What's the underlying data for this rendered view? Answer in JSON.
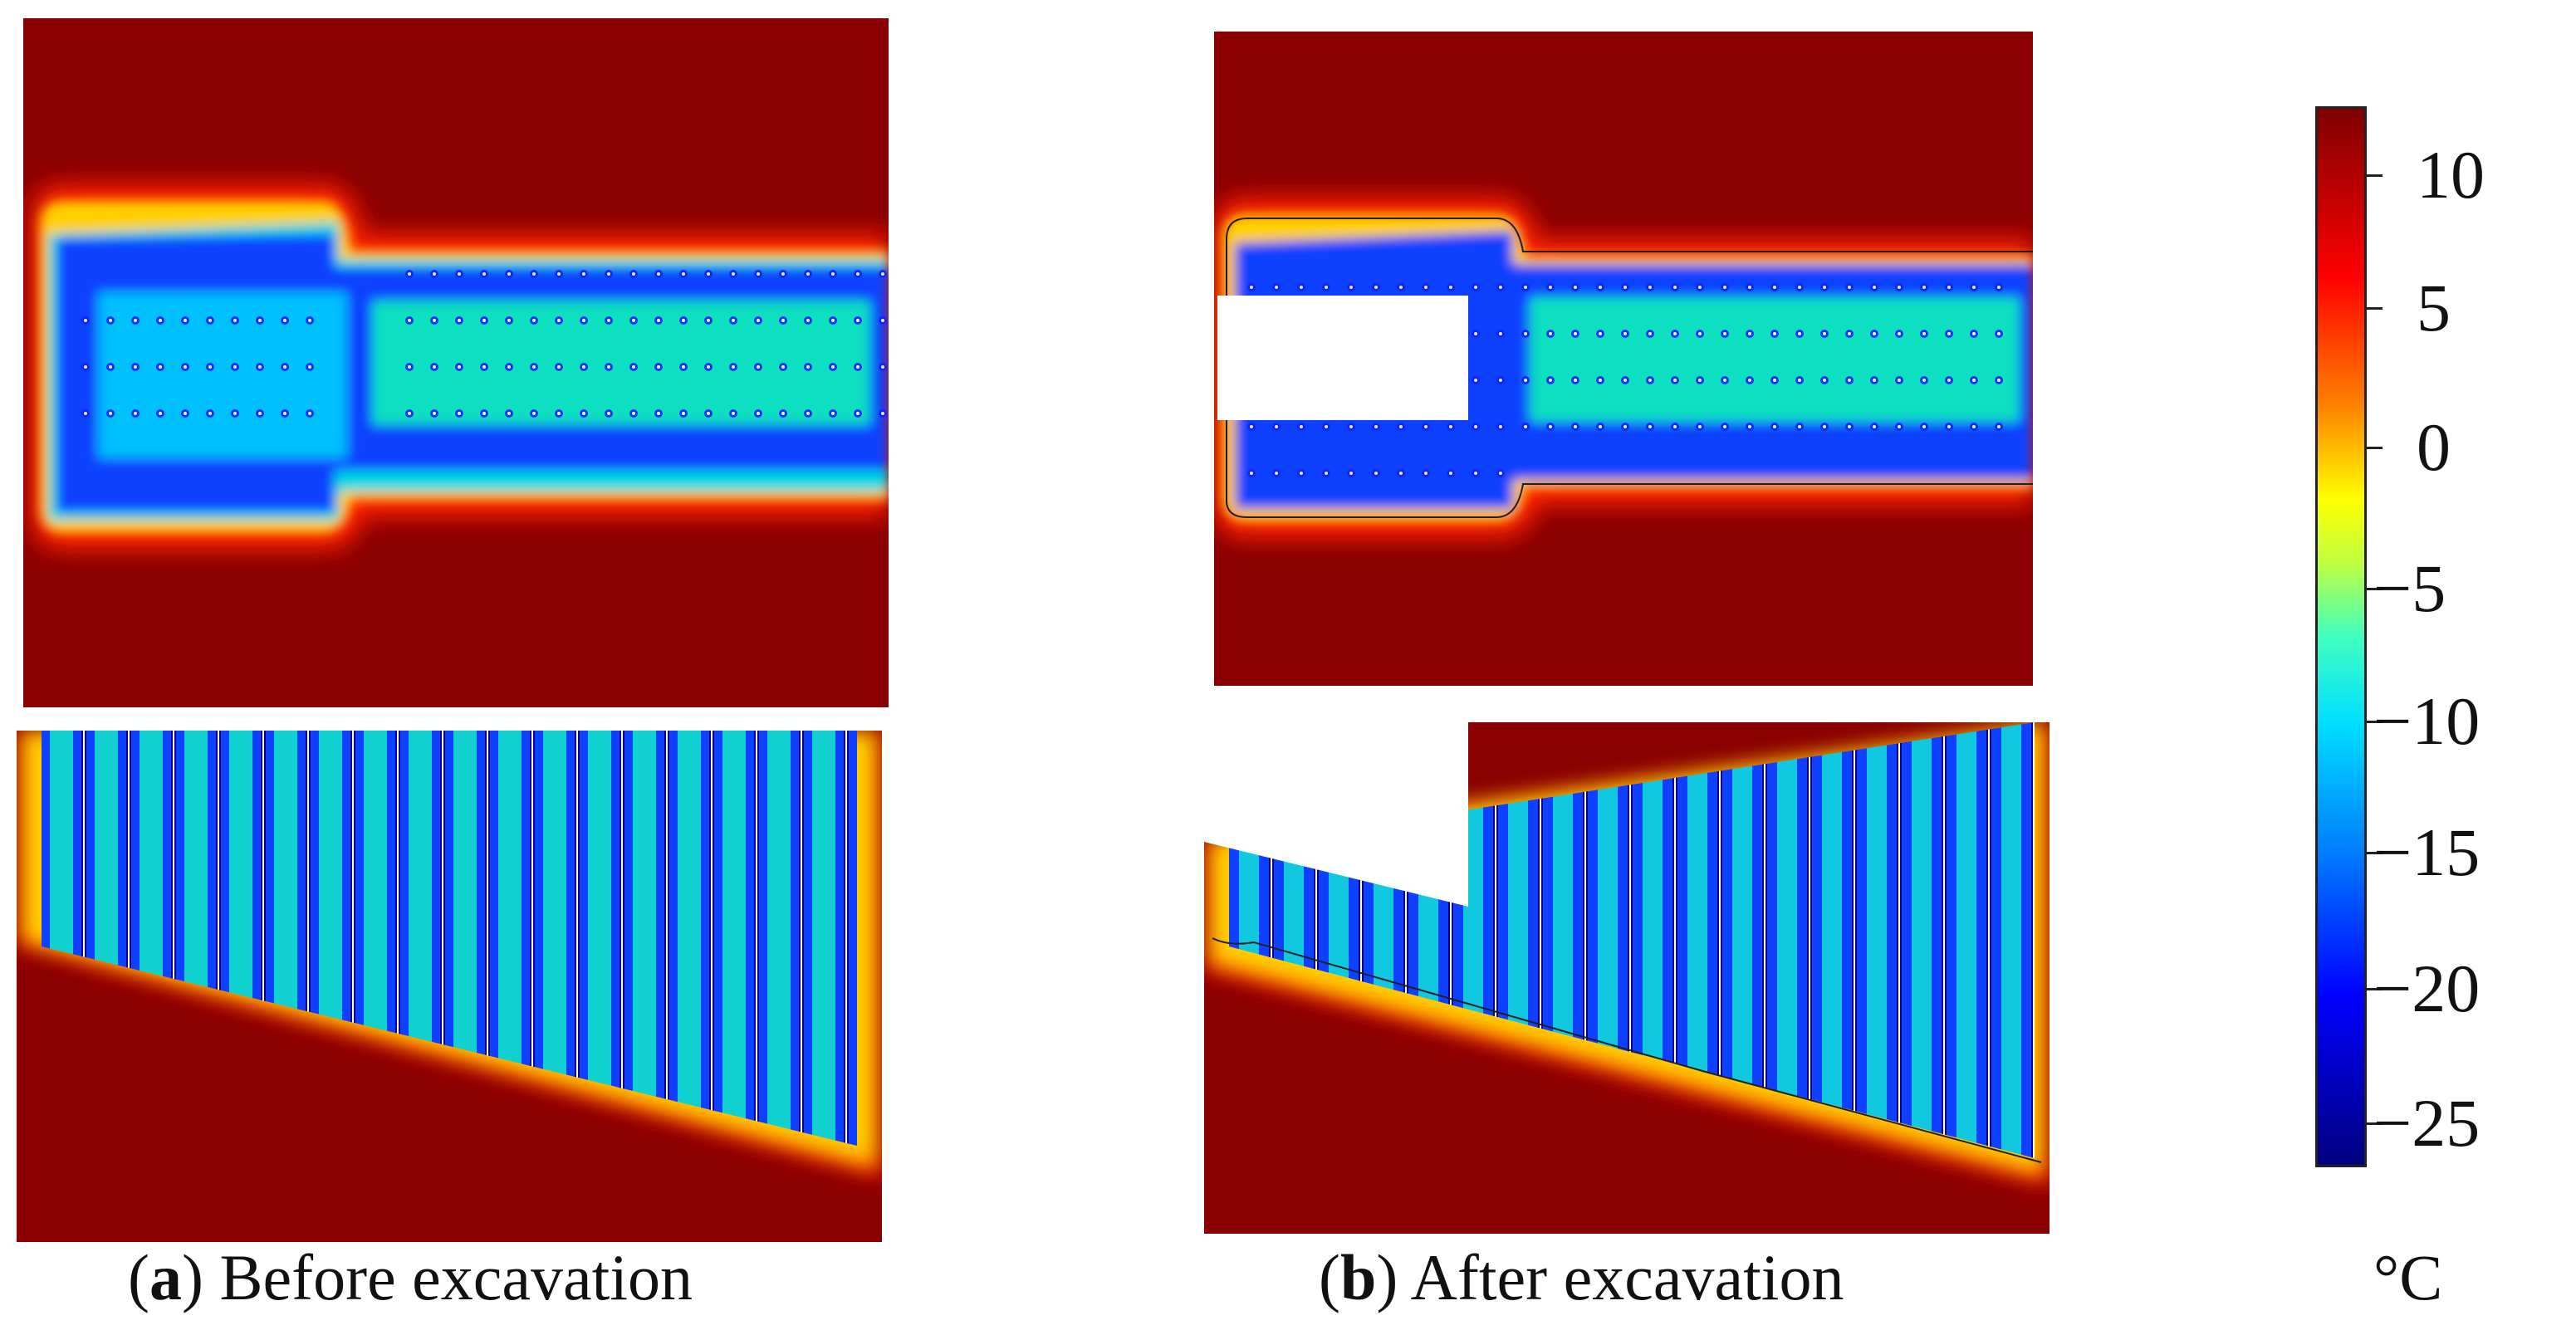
{
  "captions": {
    "a_letter": "a",
    "a_text": " Before excavation",
    "b_letter": "b",
    "b_text": " After excavation"
  },
  "colorbar": {
    "unit": "°C",
    "ticks": [
      "10",
      "5",
      "0",
      "−5",
      "−10",
      "−15",
      "−20",
      "−25"
    ],
    "colors": {
      "hot": "#8b0000",
      "warm": "#ff2000",
      "zero": "#ffd000",
      "cool": "#00e0e0",
      "cold": "#1040ff",
      "coldest": "#000090"
    }
  }
}
